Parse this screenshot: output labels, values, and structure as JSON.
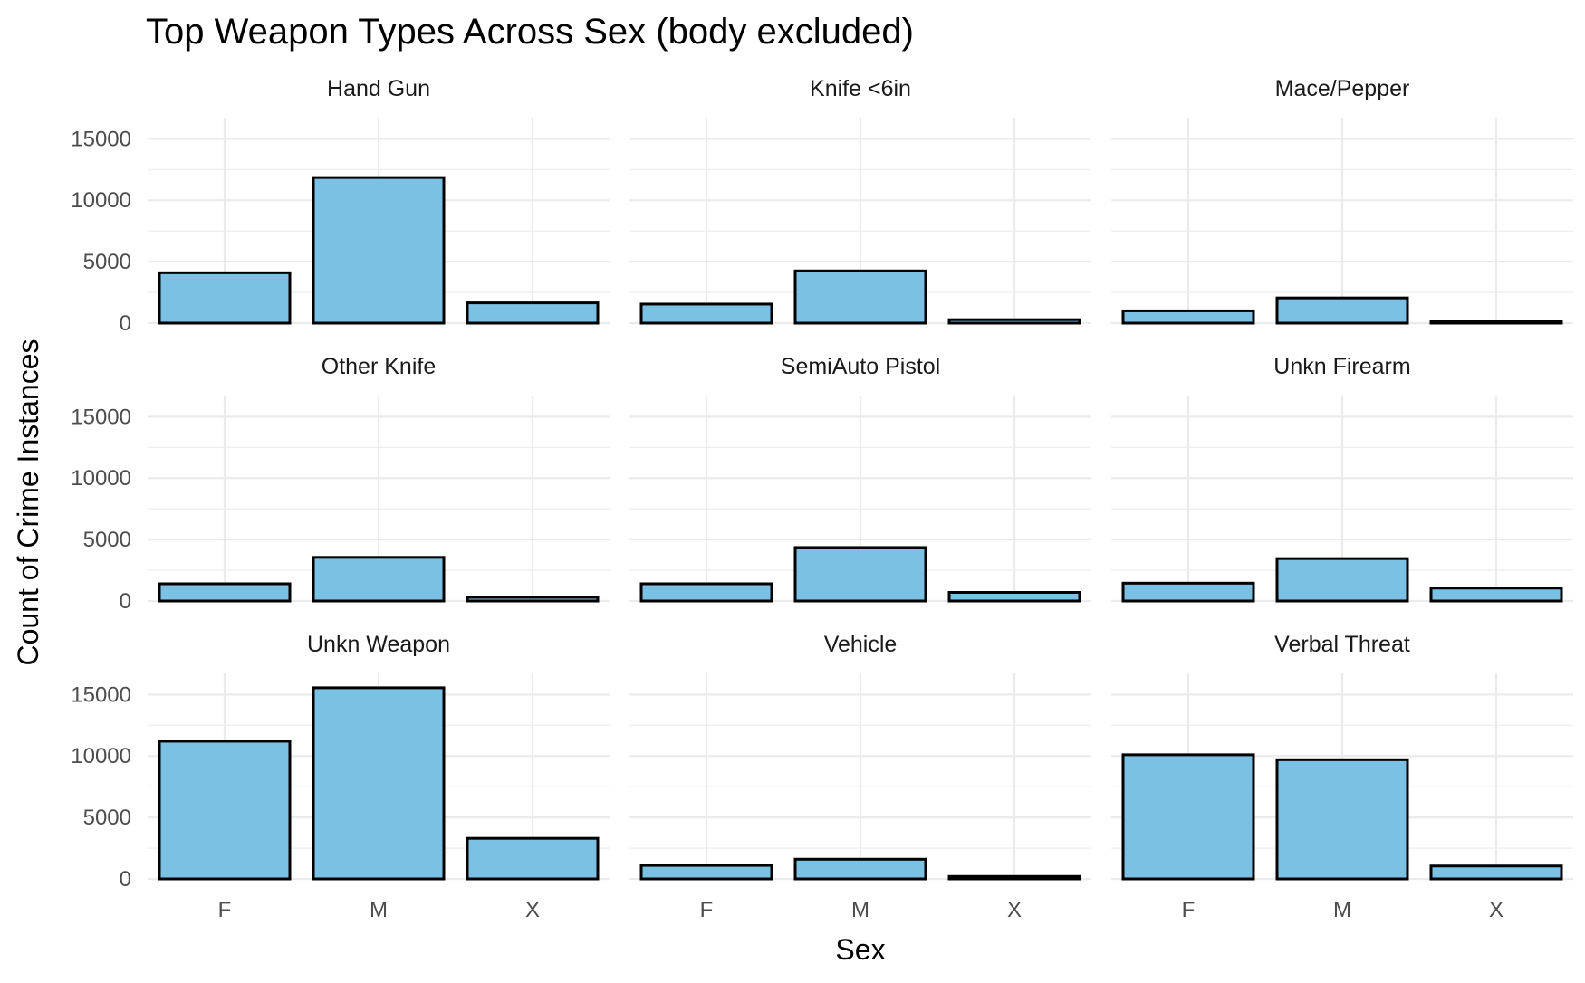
{
  "chart_data": {
    "type": "bar",
    "layout": "facet-grid 3x3, shared axes",
    "title": "Top Weapon Types Across Sex (body excluded)",
    "xlabel": "Sex",
    "ylabel": "Count of Crime Instances",
    "categories": [
      "F",
      "M",
      "X"
    ],
    "ylim": [
      0,
      16500
    ],
    "yticks": [
      "0",
      "5000",
      "10000",
      "15000"
    ],
    "grid": true,
    "legend": "none",
    "bar_fill": "#7ac1e4",
    "bar_stroke": "#000000",
    "facets": [
      {
        "name": "Hand Gun",
        "values": [
          4100,
          11850,
          1650
        ]
      },
      {
        "name": "Knife <6in",
        "values": [
          1550,
          4250,
          280
        ]
      },
      {
        "name": "Mace/Pepper",
        "values": [
          1000,
          2050,
          180
        ]
      },
      {
        "name": "Other Knife",
        "values": [
          1400,
          3550,
          300
        ]
      },
      {
        "name": "SemiAuto Pistol",
        "values": [
          1400,
          4350,
          700
        ]
      },
      {
        "name": "Unkn Firearm",
        "values": [
          1450,
          3450,
          1050
        ]
      },
      {
        "name": "Unkn Weapon",
        "values": [
          11200,
          15550,
          3300
        ]
      },
      {
        "name": "Vehicle",
        "values": [
          1100,
          1600,
          200
        ]
      },
      {
        "name": "Verbal Threat",
        "values": [
          10100,
          9700,
          1050
        ]
      }
    ]
  }
}
